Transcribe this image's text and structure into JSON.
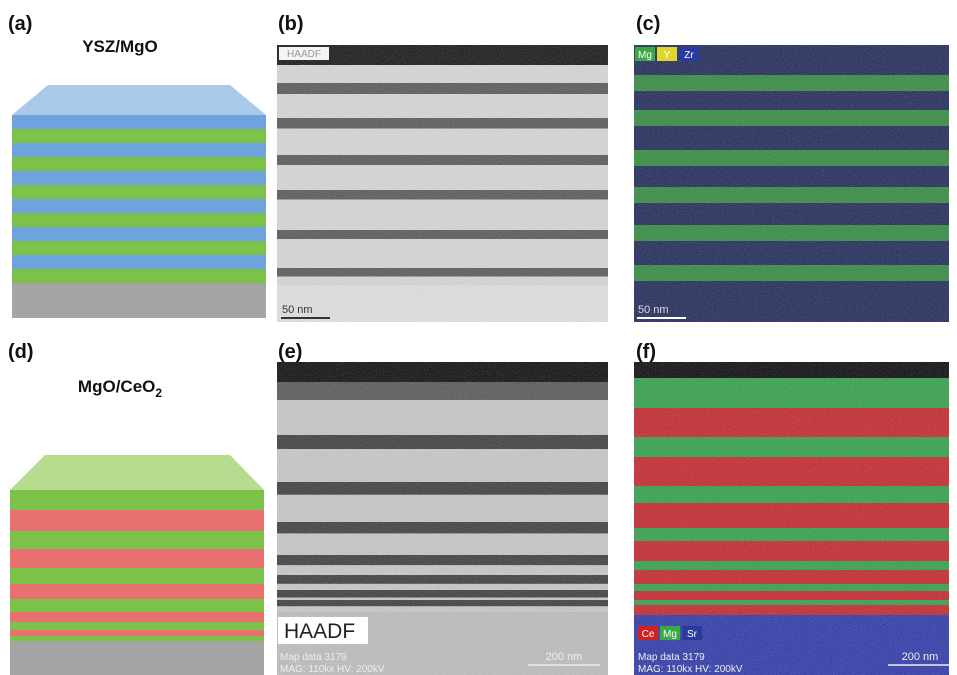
{
  "panels": [
    {
      "label": "(a)",
      "title": "YSZ/MgO"
    },
    {
      "label": "(b)",
      "badge": "HAADF",
      "scale_bar": "50 nm"
    },
    {
      "label": "(c)",
      "legend": [
        "Mg",
        "Y",
        "Zr"
      ],
      "scale_bar": "50 nm"
    },
    {
      "label": "(d)",
      "title": {
        "text": "MgO/CeO",
        "subscript": "2"
      }
    },
    {
      "label": "(e)",
      "badge": "HAADF",
      "info": [
        "Map data 3179",
        "MAG: 110kx HV: 200kV"
      ],
      "scale_bar": "200 nm"
    },
    {
      "label": "(f)",
      "legend": [
        "Ce",
        "Mg",
        "Sr"
      ],
      "info": [
        "Map data 3179",
        "MAG: 110kx HV: 200kV"
      ],
      "scale_bar": "200 nm"
    }
  ]
}
